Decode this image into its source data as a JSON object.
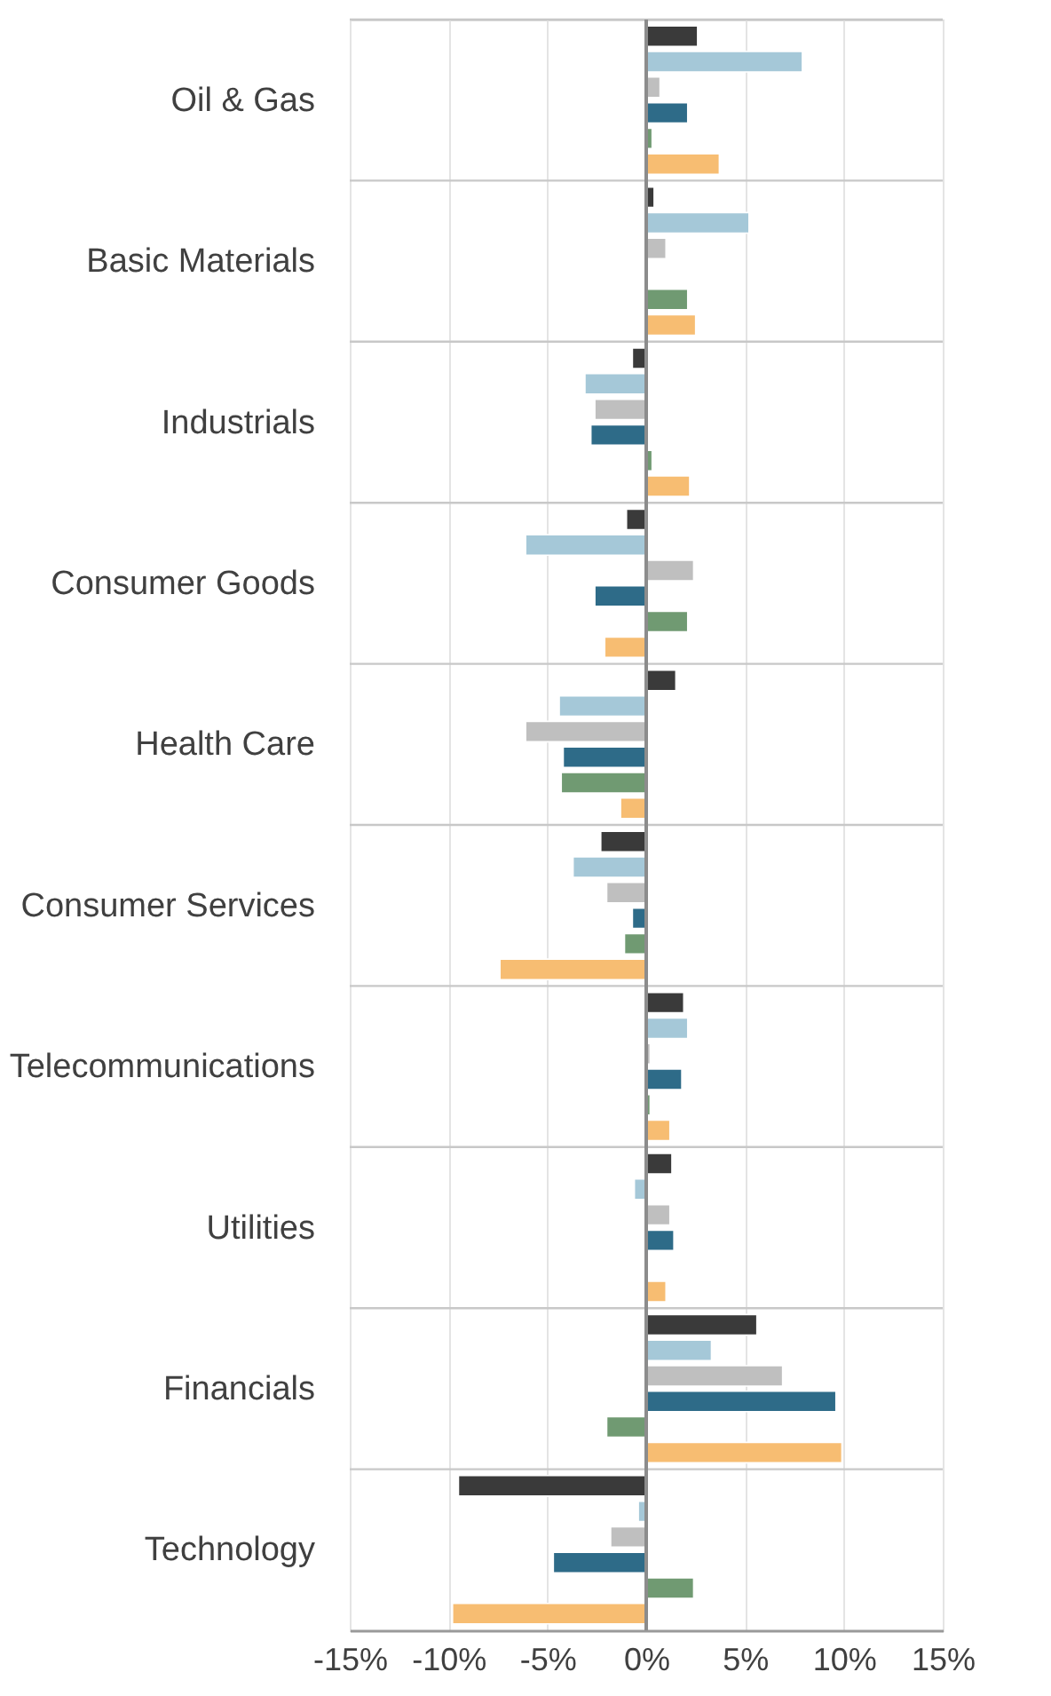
{
  "chart_data": {
    "type": "bar",
    "orientation": "horizontal",
    "categories": [
      "Oil & Gas",
      "Basic Materials",
      "Industrials",
      "Consumer Goods",
      "Health Care",
      "Consumer Services",
      "Telecommunications",
      "Utilities",
      "Financials",
      "Technology"
    ],
    "series": [
      {
        "color": "#3a3a3a",
        "values": [
          2.6,
          0.4,
          -0.7,
          -1.0,
          1.5,
          -2.3,
          1.9,
          1.3,
          5.6,
          -9.5
        ]
      },
      {
        "color": "#a5c8d8",
        "values": [
          7.9,
          5.2,
          -3.1,
          -6.1,
          -4.4,
          -3.7,
          2.1,
          -0.6,
          3.3,
          -0.4
        ]
      },
      {
        "color": "#bfbfbf",
        "values": [
          0.7,
          1.0,
          -2.6,
          2.4,
          -6.1,
          -2.0,
          0.2,
          1.2,
          6.9,
          -1.8
        ]
      },
      {
        "color": "#2e6b88",
        "values": [
          2.1,
          null,
          -2.8,
          -2.6,
          -4.2,
          -0.7,
          1.8,
          1.4,
          9.6,
          -4.7
        ]
      },
      {
        "color": "#709a72",
        "values": [
          0.3,
          2.1,
          0.3,
          2.1,
          -4.3,
          -1.1,
          0.2,
          null,
          -2.0,
          2.4
        ]
      },
      {
        "color": "#f7bd72",
        "values": [
          3.7,
          2.5,
          2.2,
          -2.1,
          -1.3,
          -7.4,
          1.2,
          1.0,
          9.9,
          -9.8
        ]
      }
    ],
    "xlim": [
      -15,
      15
    ],
    "xticks": [
      {
        "value": -15,
        "label": "-15%"
      },
      {
        "value": -10,
        "label": "-10%"
      },
      {
        "value": -5,
        "label": "-5%"
      },
      {
        "value": 0,
        "label": "0%"
      },
      {
        "value": 5,
        "label": "5%"
      },
      {
        "value": 10,
        "label": "10%"
      },
      {
        "value": 15,
        "label": "15%"
      }
    ],
    "grid": true,
    "legend": false
  }
}
